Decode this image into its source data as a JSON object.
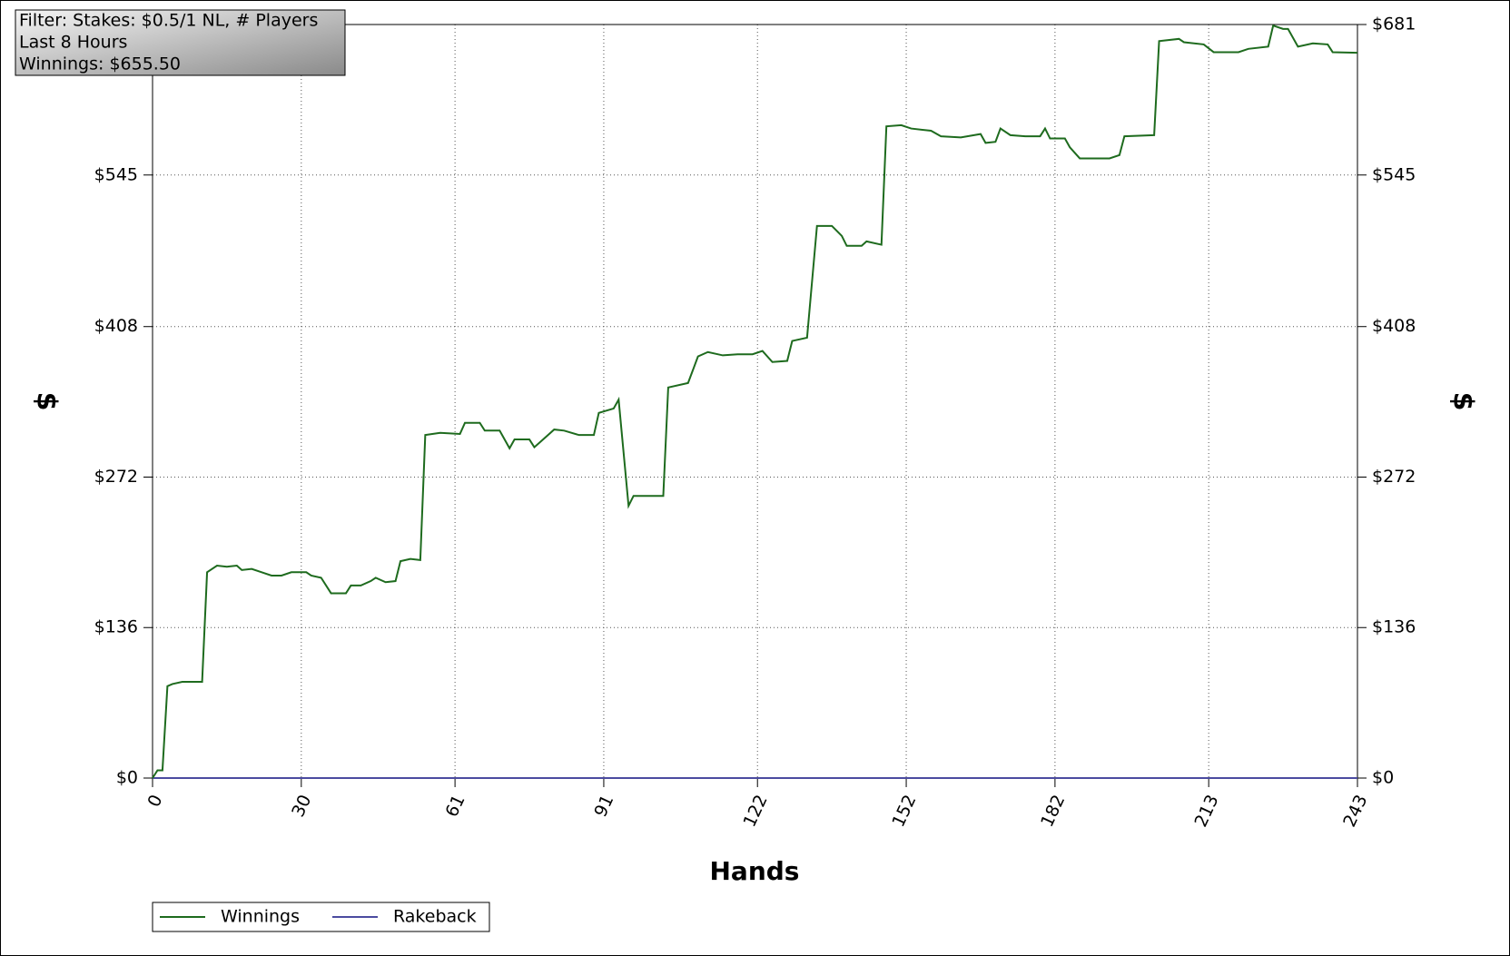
{
  "chart_data": {
    "type": "line",
    "info": [
      "Filter: Stakes: $0.5/1 NL, # Players",
      "Last  8 Hours",
      "Winnings: $655.50"
    ],
    "ylabel": "$",
    "xlabel": "Hands",
    "xlim": [
      0,
      243
    ],
    "xticks": [
      0,
      30,
      61,
      91,
      122,
      152,
      182,
      213,
      243
    ],
    "ylim": [
      0,
      681
    ],
    "yticks": [
      {
        "value": 0,
        "label": "$0"
      },
      {
        "value": 136,
        "label": "$136"
      },
      {
        "value": 272,
        "label": "$272"
      },
      {
        "value": 408,
        "label": "$408"
      },
      {
        "value": 545,
        "label": "$545"
      },
      {
        "value": 681,
        "label": "$681"
      }
    ],
    "grid": true,
    "series": [
      {
        "name": "Winnings",
        "color": "#1e6b1e",
        "x": [
          0,
          1,
          2,
          3,
          4,
          6,
          10,
          11,
          13,
          15,
          17,
          18,
          20,
          22,
          24,
          26,
          28,
          31,
          32,
          34,
          36,
          39,
          40,
          42,
          44,
          45,
          47,
          49,
          50,
          52,
          54,
          55,
          58,
          62,
          63,
          66,
          67,
          70,
          72,
          73,
          76,
          77,
          79,
          81,
          83,
          86,
          89,
          90,
          93,
          94,
          96,
          97,
          103,
          104,
          108,
          110,
          112,
          115,
          118,
          121,
          123,
          125,
          128,
          129,
          132,
          134,
          137,
          139,
          140,
          143,
          144,
          147,
          148,
          151,
          153,
          157,
          159,
          163,
          167,
          168,
          170,
          171,
          173,
          176,
          179,
          180,
          181,
          184,
          185,
          187,
          193,
          195,
          196,
          202,
          203,
          207,
          208,
          212,
          214,
          219,
          221,
          225,
          226,
          228,
          229,
          231,
          234,
          237,
          238,
          243
        ],
        "values": [
          0,
          7,
          7,
          83,
          85,
          87,
          87,
          186,
          192,
          191,
          192,
          188,
          189,
          186,
          183,
          183,
          186,
          186,
          183,
          181,
          167,
          167,
          174,
          174,
          178,
          181,
          177,
          178,
          196,
          198,
          197,
          310,
          312,
          311,
          321,
          321,
          314,
          314,
          298,
          306,
          306,
          299,
          307,
          315,
          314,
          310,
          310,
          330,
          334,
          342,
          246,
          255,
          255,
          353,
          357,
          381,
          385,
          382,
          383,
          383,
          386,
          376,
          377,
          395,
          398,
          499,
          499,
          490,
          481,
          481,
          485,
          482,
          589,
          590,
          587,
          585,
          580,
          579,
          582,
          574,
          575,
          587,
          581,
          580,
          580,
          587,
          578,
          578,
          570,
          560,
          560,
          563,
          580,
          581,
          666,
          668,
          665,
          663,
          656,
          656,
          659,
          661,
          680,
          677,
          677,
          661,
          664,
          663,
          656,
          655.5
        ]
      },
      {
        "name": "Rakeback",
        "color": "#4b4ba0",
        "x": [
          0,
          243
        ],
        "values": [
          0,
          0
        ]
      }
    ]
  }
}
